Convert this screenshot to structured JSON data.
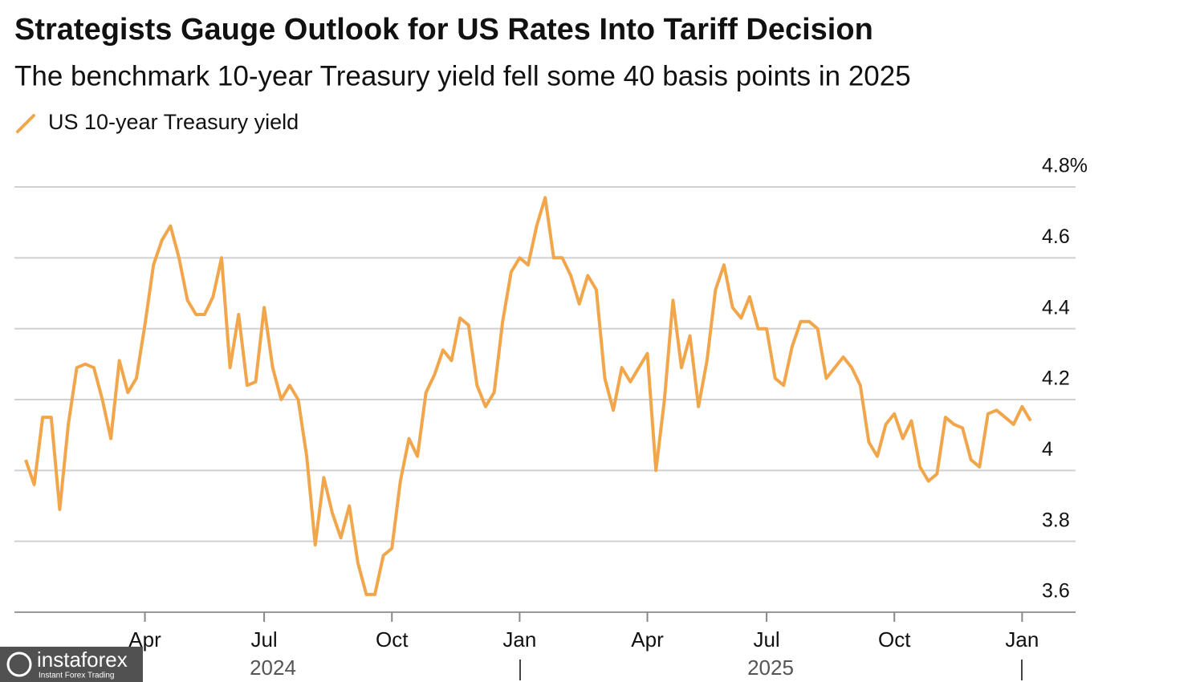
{
  "chart_data": {
    "type": "line",
    "title": "Strategists Gauge Outlook for US Rates Into Tariff Decision",
    "subtitle": "The benchmark 10-year Treasury yield fell some 40 basis points in 2025",
    "categories": [
      null,
      null,
      null,
      null,
      null,
      null,
      null,
      null,
      null,
      null,
      null,
      null,
      null,
      null,
      "Apr",
      null,
      null,
      null,
      null,
      null,
      null,
      null,
      null,
      null,
      null,
      null,
      null,
      null,
      "Jul",
      null,
      null,
      null,
      null,
      null,
      null,
      null,
      null,
      null,
      null,
      null,
      null,
      null,
      null,
      "Oct",
      null,
      null,
      null,
      null,
      null,
      null,
      null,
      null,
      null,
      null,
      null,
      null,
      null,
      null,
      "Jan",
      null,
      null,
      null,
      null,
      null,
      null,
      null,
      null,
      null,
      null,
      null,
      null,
      null,
      null,
      "Apr",
      null,
      null,
      null,
      null,
      null,
      null,
      null,
      null,
      null,
      null,
      null,
      null,
      null,
      "Jul",
      null,
      null,
      null,
      null,
      null,
      null,
      null,
      null,
      null,
      null,
      null,
      null,
      null,
      null,
      "Oct",
      null,
      null,
      null,
      null,
      null,
      null,
      null,
      null,
      null,
      null,
      null,
      null,
      null,
      null,
      "Jan",
      null
    ],
    "year_labels": [
      "2024",
      "2025"
    ],
    "series": [
      {
        "name": "US 10-year Treasury yield",
        "color": "#f2a64c",
        "values": [
          4.03,
          3.96,
          4.15,
          4.15,
          3.89,
          4.13,
          4.29,
          4.3,
          4.29,
          4.2,
          4.09,
          4.31,
          4.22,
          4.26,
          4.41,
          4.58,
          4.65,
          4.69,
          4.6,
          4.48,
          4.44,
          4.44,
          4.49,
          4.6,
          4.29,
          4.44,
          4.24,
          4.25,
          4.46,
          4.29,
          4.2,
          4.24,
          4.2,
          4.04,
          3.79,
          3.98,
          3.88,
          3.81,
          3.9,
          3.74,
          3.65,
          3.65,
          3.76,
          3.78,
          3.97,
          4.09,
          4.04,
          4.22,
          4.27,
          4.34,
          4.31,
          4.43,
          4.41,
          4.24,
          4.18,
          4.22,
          4.42,
          4.56,
          4.6,
          4.58,
          4.69,
          4.77,
          4.6,
          4.6,
          4.55,
          4.47,
          4.55,
          4.51,
          4.26,
          4.17,
          4.29,
          4.25,
          4.29,
          4.33,
          4.0,
          4.2,
          4.48,
          4.29,
          4.38,
          4.18,
          4.31,
          4.51,
          4.58,
          4.46,
          4.43,
          4.49,
          4.4,
          4.4,
          4.26,
          4.24,
          4.35,
          4.42,
          4.42,
          4.4,
          4.26,
          4.29,
          4.32,
          4.29,
          4.24,
          4.08,
          4.04,
          4.13,
          4.16,
          4.09,
          4.14,
          4.01,
          3.97,
          3.99,
          4.15,
          4.13,
          4.12,
          4.03,
          4.01,
          4.16,
          4.17,
          4.15,
          4.13,
          4.18,
          4.14
        ]
      }
    ],
    "ylim": [
      3.6,
      4.8
    ],
    "yticks": [
      3.6,
      3.8,
      4.0,
      4.2,
      4.4,
      4.6,
      {
        "value": 4.8,
        "label": "4.8%"
      }
    ],
    "grid": true
  },
  "watermark": {
    "brand": "instaforex",
    "tagline": "Instant Forex Trading"
  }
}
